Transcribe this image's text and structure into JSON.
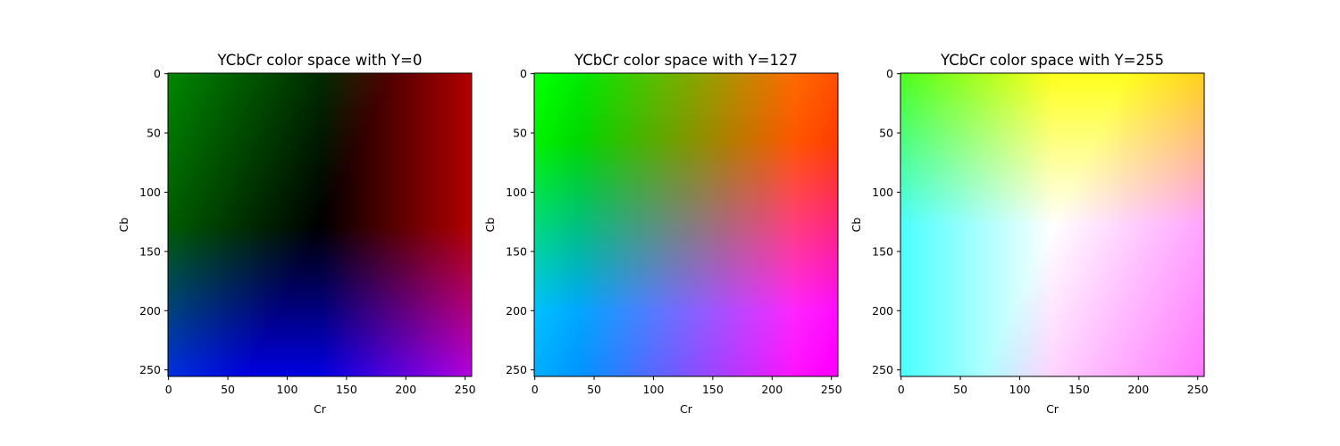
{
  "chart_data": [
    {
      "type": "heatmap",
      "title": "YCbCr color space with Y=0",
      "xlabel": "Cr",
      "ylabel": "Cb",
      "y_luma": 0,
      "xlim": [
        0,
        255
      ],
      "ylim": [
        255,
        0
      ],
      "xticks": [
        0,
        50,
        100,
        150,
        200,
        250
      ],
      "yticks": [
        0,
        50,
        100,
        150,
        200,
        250
      ],
      "grid": false,
      "legend": "none"
    },
    {
      "type": "heatmap",
      "title": "YCbCr color space with Y=127",
      "xlabel": "Cr",
      "ylabel": "Cb",
      "y_luma": 127,
      "xlim": [
        0,
        255
      ],
      "ylim": [
        255,
        0
      ],
      "xticks": [
        0,
        50,
        100,
        150,
        200,
        250
      ],
      "yticks": [
        0,
        50,
        100,
        150,
        200,
        250
      ],
      "grid": false,
      "legend": "none"
    },
    {
      "type": "heatmap",
      "title": "YCbCr color space with Y=255",
      "xlabel": "Cr",
      "ylabel": "Cb",
      "y_luma": 255,
      "xlim": [
        0,
        255
      ],
      "ylim": [
        255,
        0
      ],
      "xticks": [
        0,
        50,
        100,
        150,
        200,
        250
      ],
      "yticks": [
        0,
        50,
        100,
        150,
        200,
        250
      ],
      "grid": false,
      "legend": "none"
    }
  ]
}
